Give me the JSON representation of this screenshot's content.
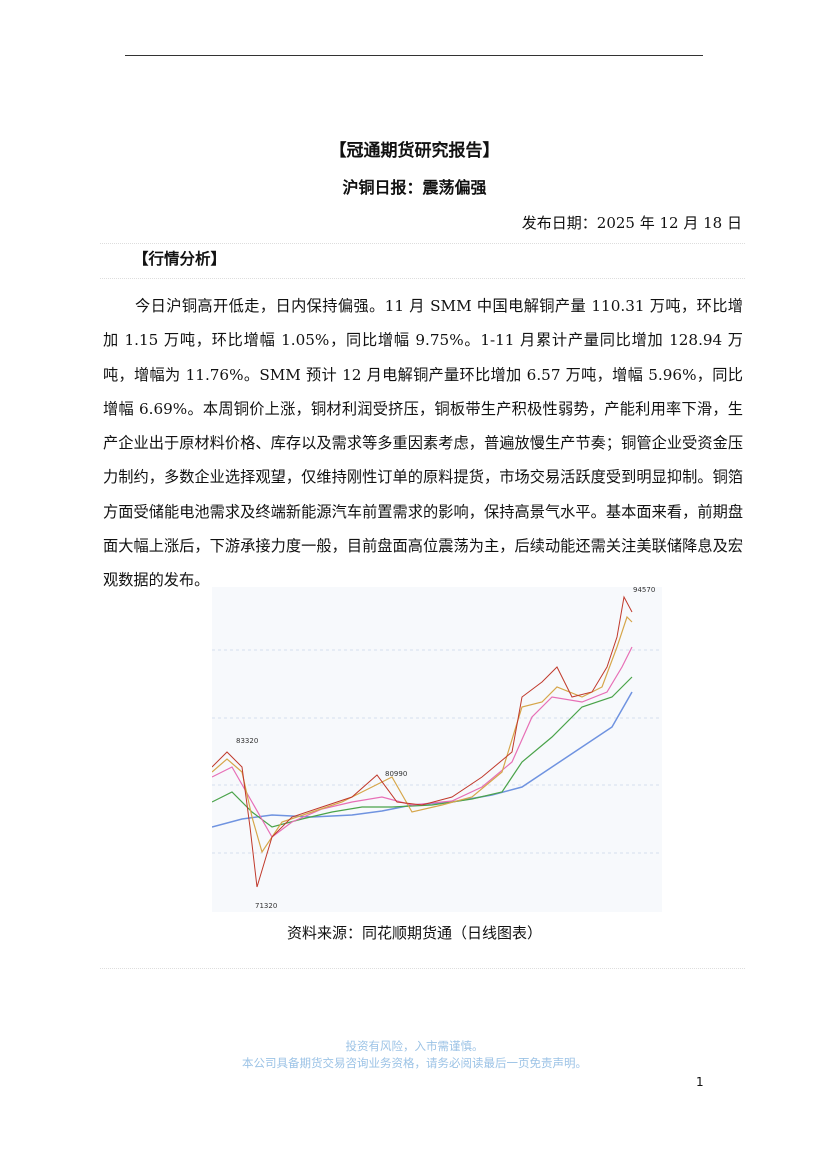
{
  "header": {
    "title": "【冠通期货研究报告】",
    "subtitle": "沪铜日报：震荡偏强",
    "date": "发布日期：2025 年 12 月 18 日"
  },
  "section": {
    "heading": "【行情分析】",
    "paragraph": "今日沪铜高开低走，日内保持偏强。11 月 SMM 中国电解铜产量 110.31 万吨，环比增加 1.15 万吨，环比增幅 1.05%，同比增幅 9.75%。1-11 月累计产量同比增加 128.94 万吨，增幅为 11.76%。SMM 预计 12 月电解铜产量环比增加 6.57 万吨，增幅 5.96%，同比增幅 6.69%。本周铜价上涨，铜材利润受挤压，铜板带生产积极性弱势，产能利用率下滑，生产企业出于原材料价格、库存以及需求等多重因素考虑，普遍放慢生产节奏；铜管企业受资金压力制约，多数企业选择观望，仅维持刚性订单的原料提货，市场交易活跃度受到明显抑制。铜箔方面受储能电池需求及终端新能源汽车前置需求的影响，保持高景气水平。基本面来看，前期盘面大幅上涨后，下游承接力度一般，目前盘面高位震荡为主，后续动能还需关注美联储降息及宏观数据的发布。"
  },
  "figure": {
    "labels": [
      "83320",
      "80990",
      "94570",
      "71320"
    ],
    "caption": "资料来源：同花顺期货通（日线图表）"
  },
  "footer": {
    "risk": "投资有风险，入市需谨慎。",
    "notice": "本公司具备期货交易咨询业务资格，请务必阅读最后一页免责声明。",
    "page": "1"
  }
}
